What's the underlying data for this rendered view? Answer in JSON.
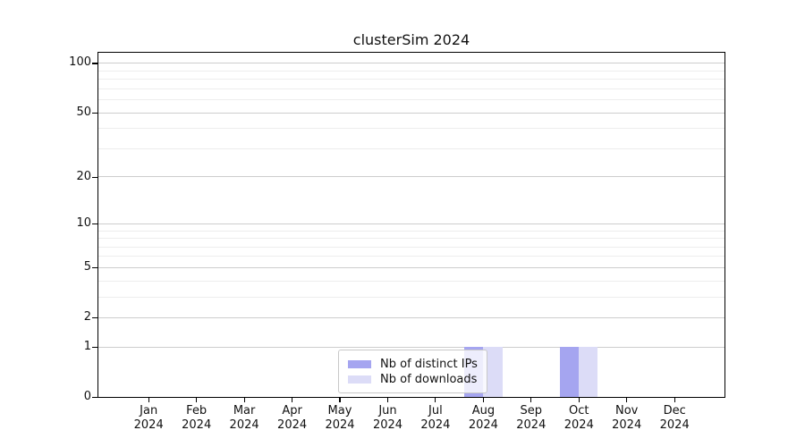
{
  "chart_data": {
    "type": "bar",
    "title": "clusterSim 2024",
    "categories": [
      "Jan",
      "Feb",
      "Mar",
      "Apr",
      "May",
      "Jun",
      "Jul",
      "Aug",
      "Sep",
      "Oct",
      "Nov",
      "Dec"
    ],
    "year_label": "2024",
    "series": [
      {
        "name": "Nb of distinct IPs",
        "color": "#a5a5f0",
        "values": [
          0,
          0,
          0,
          0,
          0,
          0,
          0,
          1,
          0,
          1,
          0,
          0
        ]
      },
      {
        "name": "Nb of downloads",
        "color": "#dcdcf7",
        "values": [
          0,
          0,
          0,
          0,
          0,
          0,
          0,
          1,
          0,
          1,
          0,
          0
        ]
      }
    ],
    "yscale": "log1p",
    "ylim": [
      0,
      115
    ],
    "y_ticks": [
      0,
      1,
      2,
      5,
      10,
      20,
      50,
      100
    ],
    "y_minor_gridlines": [
      3,
      4,
      6,
      7,
      8,
      9,
      30,
      40,
      60,
      70,
      80,
      90
    ],
    "xlabel": "",
    "ylabel": "",
    "grid": "horizontal",
    "legend_position": "lower center"
  },
  "colors": {
    "major_grid": "#cdcdcd",
    "minor_grid": "#ededed",
    "spine": "#000000",
    "legend_border": "#c8c8c8"
  }
}
